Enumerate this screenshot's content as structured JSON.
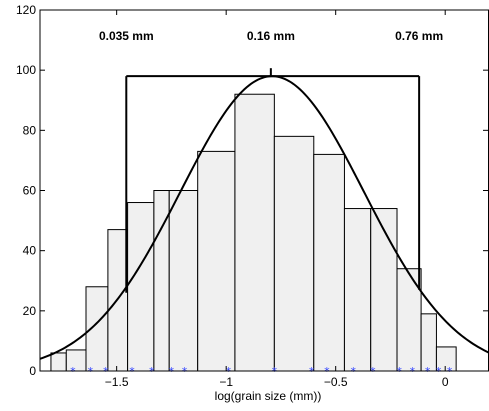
{
  "chart_data": {
    "type": "histogram",
    "title": "",
    "xlabel": "log(grain size (mm))",
    "ylabel": "",
    "xlim": [
      -1.85,
      0.2
    ],
    "ylim": [
      0,
      120
    ],
    "grid": false,
    "xticks": [
      -1.5,
      -1,
      -0.5,
      0
    ],
    "xtick_labels": [
      "−1.5",
      "−1",
      "−0.5",
      "0"
    ],
    "yticks": [
      0,
      20,
      40,
      60,
      80,
      100,
      120
    ],
    "ytick_labels": [
      "0",
      "20",
      "40",
      "60",
      "80",
      "100",
      "120"
    ],
    "bins": [
      {
        "x0": -1.8,
        "x1": -1.73,
        "count": 6
      },
      {
        "x0": -1.73,
        "x1": -1.64,
        "count": 7
      },
      {
        "x0": -1.64,
        "x1": -1.54,
        "count": 28
      },
      {
        "x0": -1.54,
        "x1": -1.45,
        "count": 47
      },
      {
        "x0": -1.45,
        "x1": -1.33,
        "count": 56
      },
      {
        "x0": -1.33,
        "x1": -1.26,
        "count": 60
      },
      {
        "x0": -1.26,
        "x1": -1.13,
        "count": 60
      },
      {
        "x0": -1.13,
        "x1": -0.96,
        "count": 73
      },
      {
        "x0": -0.96,
        "x1": -0.78,
        "count": 92
      },
      {
        "x0": -0.78,
        "x1": -0.6,
        "count": 78
      },
      {
        "x0": -0.6,
        "x1": -0.46,
        "count": 72
      },
      {
        "x0": -0.46,
        "x1": -0.34,
        "count": 54
      },
      {
        "x0": -0.34,
        "x1": -0.22,
        "count": 54
      },
      {
        "x0": -0.22,
        "x1": -0.11,
        "count": 34
      },
      {
        "x0": -0.11,
        "x1": -0.04,
        "count": 19
      },
      {
        "x0": -0.04,
        "x1": 0.05,
        "count": 8
      }
    ],
    "markers_x": [
      -1.7,
      -1.62,
      -1.55,
      -1.43,
      -1.34,
      -1.25,
      -1.19,
      -0.99,
      -0.78,
      -0.61,
      -0.54,
      -0.42,
      -0.33,
      -0.21,
      -0.15,
      -0.08,
      -0.03,
      0.02
    ],
    "markers_y": 0,
    "marker_color": "#3344ff",
    "fit_curve": {
      "type": "normal",
      "mean": -0.79,
      "sd": 0.42,
      "peak": 98,
      "x_range": [
        -1.85,
        0.2
      ]
    },
    "annotations": [
      {
        "label": "0.035 mm",
        "x": -1.456,
        "label_y": 110
      },
      {
        "label": "0.16 mm",
        "x": -0.796,
        "label_y": 110
      },
      {
        "label": "0.76 mm",
        "x": -0.119,
        "label_y": 110
      }
    ],
    "bracket": {
      "x0": -1.456,
      "x1": -0.119,
      "y": 98,
      "low_left_y": 26,
      "low_right_y": 27
    },
    "bar_fill": "#f0f0f0",
    "bar_stroke": "#000000"
  }
}
